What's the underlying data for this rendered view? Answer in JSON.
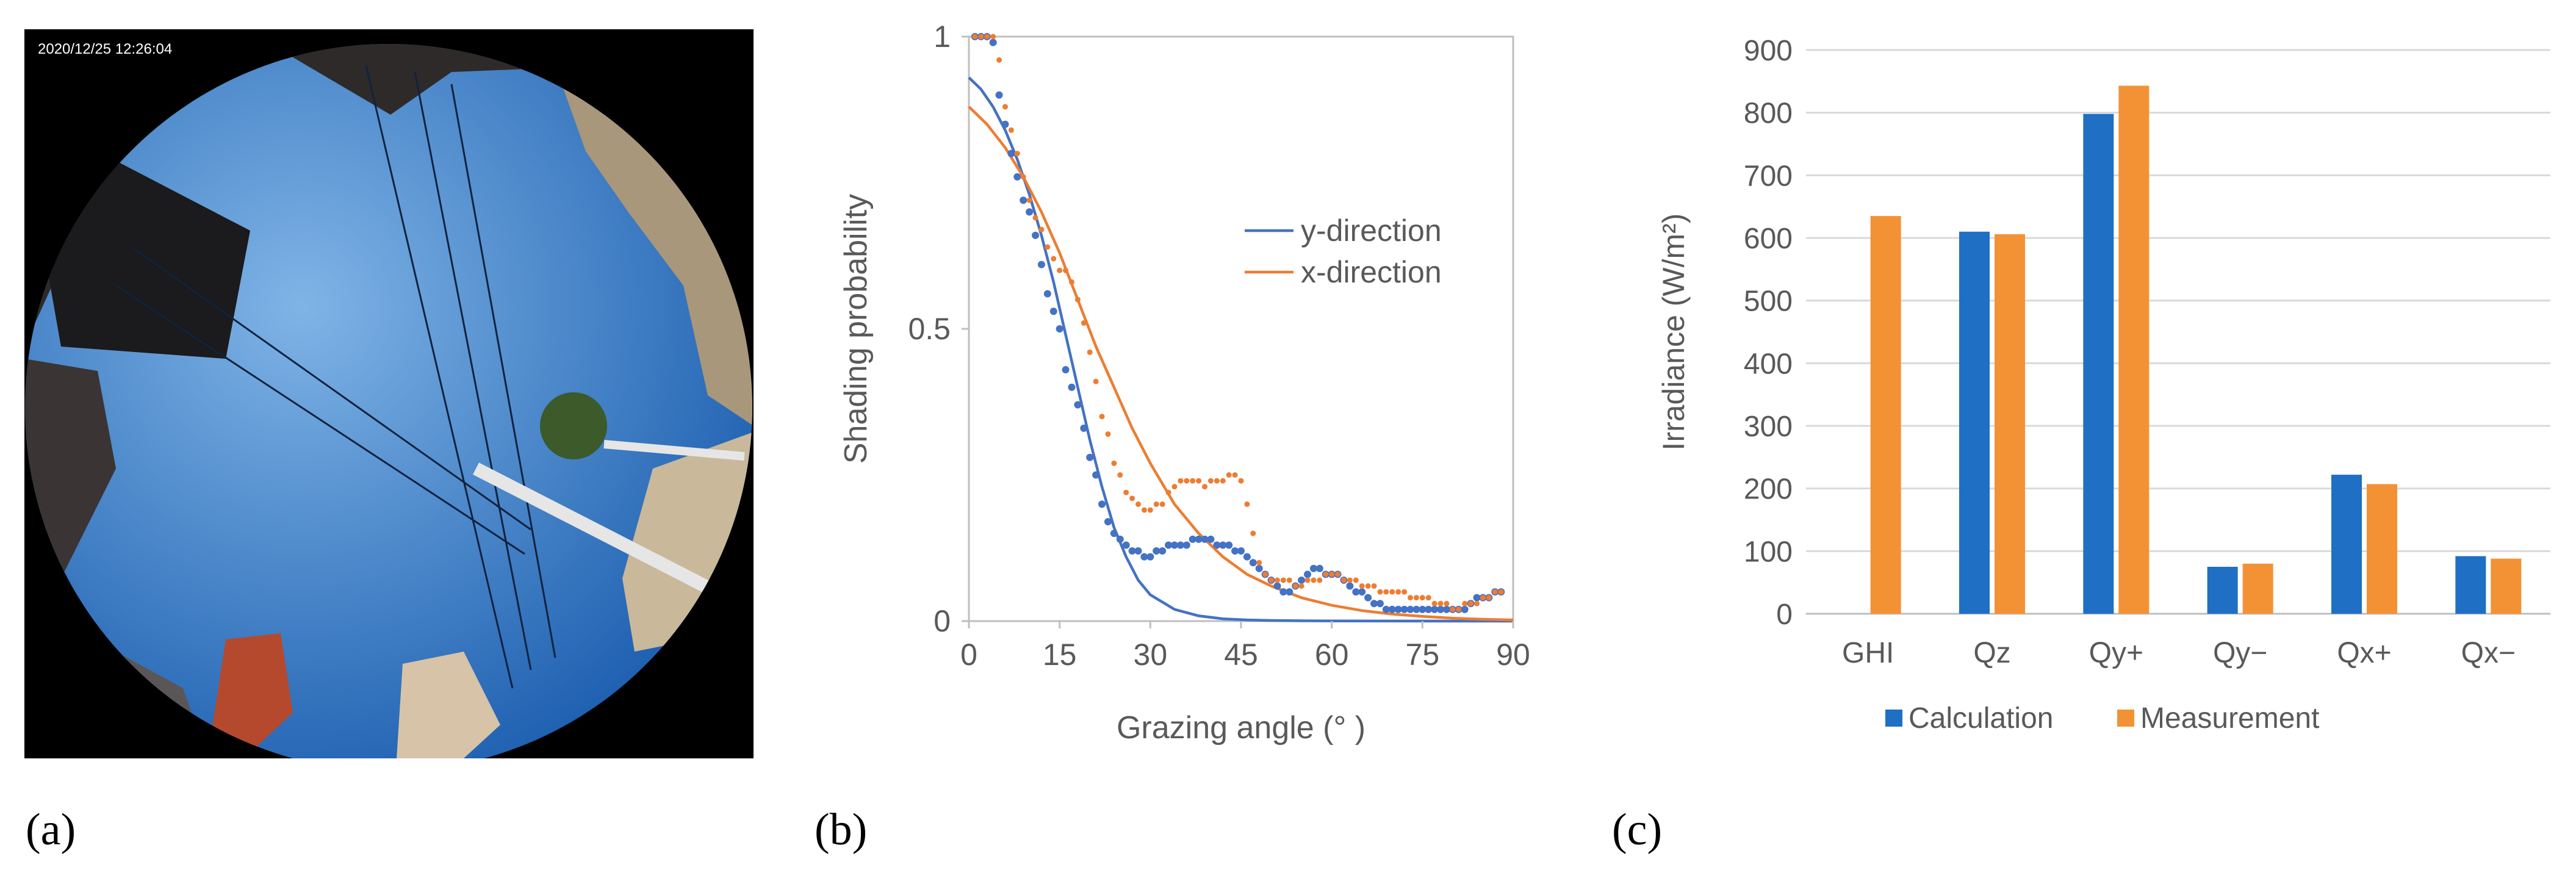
{
  "panel_labels": {
    "a": "(a)",
    "b": "(b)",
    "c": "(c)"
  },
  "photo": {
    "timestamp": "2020/12/25 12:26:04",
    "colors": {
      "sky_center": "#7fb4e6",
      "sky_edge": "#1d5fb0",
      "frame": "#000000"
    }
  },
  "chart_data": [
    {
      "type": "scatter",
      "xlabel": "Grazing angle (° )",
      "ylabel": "Shading probability",
      "xlim": [
        0,
        90
      ],
      "ylim": [
        0,
        1
      ],
      "xticks": [
        "0",
        "15",
        "30",
        "45",
        "60",
        "75",
        "90"
      ],
      "yticks": [
        "0",
        "0.5",
        "1"
      ],
      "grid": false,
      "legend_position": "upper-right",
      "series": [
        {
          "name": "y-direction",
          "color": "#4472c4",
          "line": {
            "x": [
              0,
              2,
              4,
              6,
              8,
              10,
              12,
              14,
              16,
              18,
              20,
              22,
              24,
              26,
              28,
              30,
              34,
              38,
              42,
              46,
              50,
              55,
              60,
              70,
              80,
              90
            ],
            "y": [
              0.93,
              0.91,
              0.88,
              0.84,
              0.79,
              0.73,
              0.66,
              0.58,
              0.49,
              0.4,
              0.31,
              0.23,
              0.16,
              0.11,
              0.07,
              0.045,
              0.02,
              0.009,
              0.004,
              0.002,
              0.001,
              0.0005,
              0.0002,
              0.0001,
              0.0,
              0.0
            ]
          },
          "points": {
            "x": [
              1,
              2,
              3,
              4,
              5,
              6,
              7,
              8,
              9,
              10,
              11,
              12,
              13,
              14,
              15,
              16,
              17,
              18,
              19,
              20,
              21,
              22,
              23,
              24,
              25,
              26,
              27,
              28,
              29,
              30,
              31,
              32,
              33,
              34,
              35,
              36,
              37,
              38,
              39,
              40,
              41,
              42,
              43,
              44,
              45,
              46,
              47,
              48,
              49,
              50,
              51,
              52,
              53,
              54,
              55,
              56,
              57,
              58,
              59,
              60,
              61,
              62,
              63,
              64,
              65,
              66,
              67,
              68,
              69,
              70,
              71,
              72,
              73,
              74,
              75,
              76,
              77,
              78,
              79,
              80,
              81,
              82,
              83,
              84,
              85,
              86,
              87,
              88
            ],
            "y": [
              1.0,
              1.0,
              1.0,
              0.99,
              0.9,
              0.85,
              0.8,
              0.76,
              0.72,
              0.7,
              0.66,
              0.61,
              0.56,
              0.53,
              0.5,
              0.43,
              0.4,
              0.37,
              0.33,
              0.28,
              0.25,
              0.2,
              0.17,
              0.15,
              0.14,
              0.13,
              0.12,
              0.12,
              0.11,
              0.11,
              0.12,
              0.12,
              0.13,
              0.13,
              0.13,
              0.13,
              0.14,
              0.14,
              0.14,
              0.14,
              0.13,
              0.13,
              0.13,
              0.12,
              0.12,
              0.11,
              0.1,
              0.09,
              0.08,
              0.07,
              0.06,
              0.05,
              0.05,
              0.06,
              0.07,
              0.08,
              0.09,
              0.09,
              0.08,
              0.08,
              0.08,
              0.07,
              0.06,
              0.05,
              0.05,
              0.04,
              0.03,
              0.03,
              0.02,
              0.02,
              0.02,
              0.02,
              0.02,
              0.02,
              0.02,
              0.02,
              0.02,
              0.02,
              0.02,
              0.02,
              0.02,
              0.02,
              0.03,
              0.04,
              0.04,
              0.04,
              0.05,
              0.05
            ]
          }
        },
        {
          "name": "x-direction",
          "color": "#ed7d31",
          "line": {
            "x": [
              0,
              3,
              6,
              9,
              12,
              15,
              18,
              21,
              24,
              27,
              30,
              34,
              38,
              42,
              46,
              50,
              55,
              60,
              65,
              70,
              75,
              80,
              85,
              90
            ],
            "y": [
              0.88,
              0.85,
              0.81,
              0.76,
              0.7,
              0.63,
              0.55,
              0.47,
              0.4,
              0.33,
              0.27,
              0.2,
              0.15,
              0.11,
              0.08,
              0.06,
              0.04,
              0.027,
              0.018,
              0.012,
              0.008,
              0.005,
              0.003,
              0.002
            ]
          },
          "points": {
            "x": [
              1,
              2,
              3,
              4,
              5,
              6,
              7,
              8,
              9,
              10,
              11,
              12,
              13,
              14,
              15,
              16,
              17,
              18,
              19,
              20,
              21,
              22,
              23,
              24,
              25,
              26,
              27,
              28,
              29,
              30,
              31,
              32,
              33,
              34,
              35,
              36,
              37,
              38,
              39,
              40,
              41,
              42,
              43,
              44,
              45,
              46,
              47,
              48,
              49,
              50,
              51,
              52,
              53,
              54,
              55,
              56,
              57,
              58,
              59,
              60,
              61,
              62,
              63,
              64,
              65,
              66,
              67,
              68,
              69,
              70,
              71,
              72,
              73,
              74,
              75,
              76,
              77,
              78,
              79,
              80,
              81,
              82,
              83,
              84,
              85,
              86,
              87,
              88
            ],
            "y": [
              1.0,
              1.0,
              1.0,
              1.0,
              0.96,
              0.88,
              0.84,
              0.8,
              0.76,
              0.72,
              0.69,
              0.67,
              0.64,
              0.62,
              0.6,
              0.6,
              0.58,
              0.55,
              0.51,
              0.46,
              0.41,
              0.35,
              0.32,
              0.27,
              0.25,
              0.22,
              0.21,
              0.2,
              0.19,
              0.19,
              0.2,
              0.2,
              0.22,
              0.23,
              0.24,
              0.24,
              0.24,
              0.24,
              0.23,
              0.24,
              0.24,
              0.24,
              0.25,
              0.25,
              0.24,
              0.2,
              0.15,
              0.1,
              0.08,
              0.07,
              0.07,
              0.07,
              0.07,
              0.06,
              0.06,
              0.07,
              0.07,
              0.07,
              0.08,
              0.08,
              0.08,
              0.07,
              0.07,
              0.07,
              0.06,
              0.06,
              0.06,
              0.05,
              0.05,
              0.05,
              0.05,
              0.05,
              0.04,
              0.04,
              0.04,
              0.04,
              0.03,
              0.03,
              0.03,
              0.02,
              0.02,
              0.03,
              0.03,
              0.03,
              0.04,
              0.04,
              0.05,
              0.05
            ]
          }
        }
      ]
    },
    {
      "type": "bar",
      "ylabel": "Irradiance (W/m²)",
      "categories": [
        "GHI",
        "Qz",
        "Qy+",
        "Qy−",
        "Qx+",
        "Qx−"
      ],
      "ylim": [
        0,
        900
      ],
      "yticks": [
        "0",
        "100",
        "200",
        "300",
        "400",
        "500",
        "600",
        "700",
        "800",
        "900"
      ],
      "grid": true,
      "legend_position": "bottom",
      "series": [
        {
          "name": "Calculation",
          "color": "#1f6fc5",
          "values": [
            null,
            610,
            798,
            75,
            222,
            92
          ]
        },
        {
          "name": "Measurement",
          "color": "#f39235",
          "values": [
            635,
            606,
            843,
            80,
            207,
            88
          ]
        }
      ]
    }
  ]
}
